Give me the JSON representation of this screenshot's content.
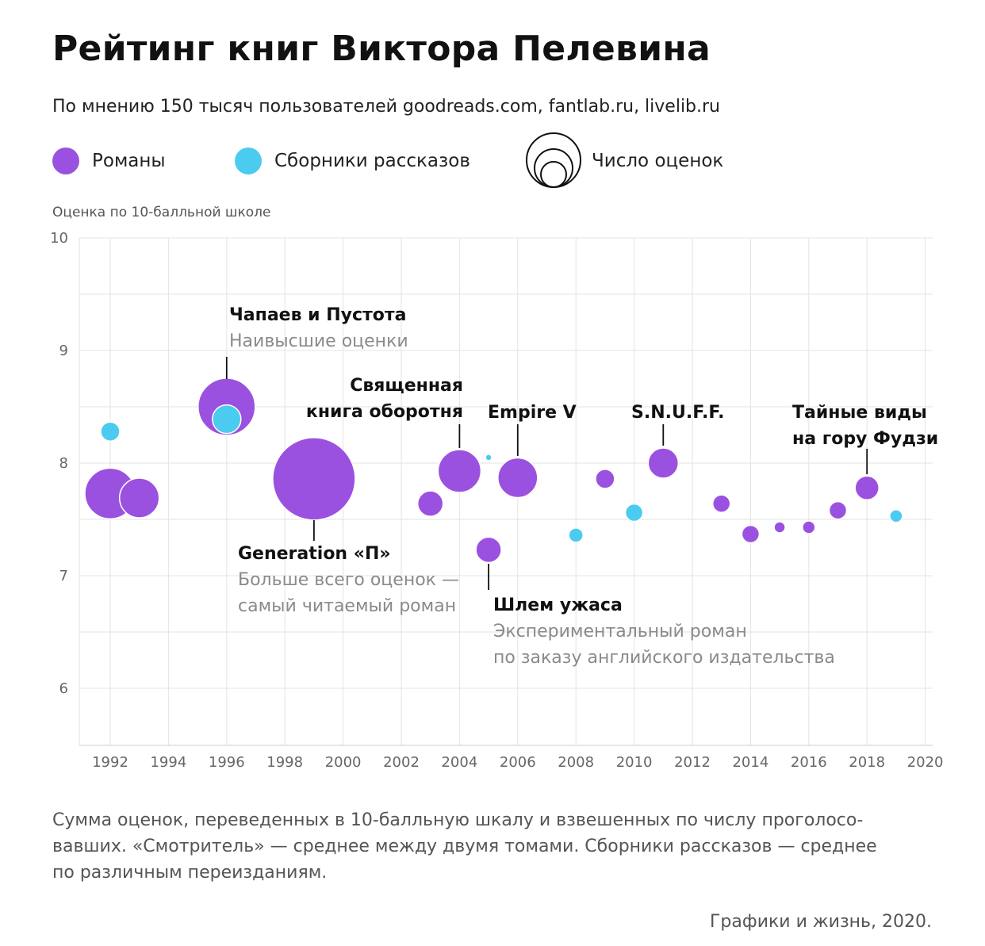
{
  "header": {
    "title": "Рейтинг книг Виктора Пелевина",
    "subtitle": "По мнению 150 тысяч пользователей goodreads.com, fantlab.ru, livelib.ru"
  },
  "legend": {
    "novels": "Романы",
    "stories": "Сборники рассказов",
    "size": "Число оценок"
  },
  "colors": {
    "novel": "#9b51e0",
    "story": "#4ccbf0"
  },
  "footnote": {
    "line1": "Сумма оценок, переведенных в 10-балльную шкалу и взвешенных по числу проголосо-",
    "line2": "вавших. «Смотритель» — среднее между двумя томами. Сборники рассказов — среднее",
    "line3": "по различным переизданиям."
  },
  "credit": "Графики и жизнь, 2020.",
  "chart_data": {
    "type": "scatter",
    "ylabel": "Оценка по 10-балльной школе",
    "xlim": [
      1991,
      2020
    ],
    "ylim": [
      5.5,
      10
    ],
    "x_ticks": [
      1992,
      1994,
      1996,
      1998,
      2000,
      2002,
      2004,
      2006,
      2008,
      2010,
      2012,
      2014,
      2016,
      2018,
      2020
    ],
    "y_ticks": [
      6,
      7,
      8,
      9,
      10
    ],
    "grid": true,
    "points": [
      {
        "year": 1992,
        "rating": 8.28,
        "kind": "story",
        "r": 12
      },
      {
        "year": 1992,
        "rating": 7.73,
        "kind": "novel",
        "r": 32
      },
      {
        "year": 1993,
        "rating": 7.69,
        "kind": "novel",
        "r": 25
      },
      {
        "year": 1996,
        "rating": 8.5,
        "kind": "novel",
        "r": 36
      },
      {
        "year": 1996,
        "rating": 8.39,
        "kind": "story",
        "r": 18
      },
      {
        "year": 1999,
        "rating": 7.86,
        "kind": "novel",
        "r": 52
      },
      {
        "year": 2003,
        "rating": 7.64,
        "kind": "novel",
        "r": 16
      },
      {
        "year": 2004,
        "rating": 7.93,
        "kind": "novel",
        "r": 27
      },
      {
        "year": 2005,
        "rating": 8.05,
        "kind": "story",
        "r": 4
      },
      {
        "year": 2005,
        "rating": 7.23,
        "kind": "novel",
        "r": 16
      },
      {
        "year": 2006,
        "rating": 7.87,
        "kind": "novel",
        "r": 25
      },
      {
        "year": 2008,
        "rating": 7.36,
        "kind": "story",
        "r": 9
      },
      {
        "year": 2009,
        "rating": 7.86,
        "kind": "novel",
        "r": 12
      },
      {
        "year": 2010,
        "rating": 7.56,
        "kind": "story",
        "r": 11
      },
      {
        "year": 2011,
        "rating": 8.0,
        "kind": "novel",
        "r": 19
      },
      {
        "year": 2013,
        "rating": 7.64,
        "kind": "novel",
        "r": 11
      },
      {
        "year": 2014,
        "rating": 7.37,
        "kind": "novel",
        "r": 11
      },
      {
        "year": 2015,
        "rating": 7.43,
        "kind": "novel",
        "r": 7
      },
      {
        "year": 2016,
        "rating": 7.43,
        "kind": "novel",
        "r": 8
      },
      {
        "year": 2017,
        "rating": 7.58,
        "kind": "novel",
        "r": 11
      },
      {
        "year": 2018,
        "rating": 7.78,
        "kind": "novel",
        "r": 15
      },
      {
        "year": 2019,
        "rating": 7.53,
        "kind": "story",
        "r": 8
      }
    ],
    "annotations": [
      {
        "id": "chapaev",
        "year": 1996,
        "rating": 8.5,
        "dir": "up",
        "title": [
          "Чапаев и Пустота"
        ],
        "note": [
          "Наивысшие оценки"
        ]
      },
      {
        "id": "svyashchennaya",
        "year": 2004,
        "rating": 7.93,
        "dir": "up",
        "title": [
          "Священная",
          "книга оборотня"
        ],
        "note": []
      },
      {
        "id": "empire",
        "year": 2006,
        "rating": 7.87,
        "dir": "up",
        "title": [
          "Empire V"
        ],
        "note": []
      },
      {
        "id": "snuff",
        "year": 2011,
        "rating": 8.0,
        "dir": "up",
        "title": [
          "S.N.U.F.F."
        ],
        "note": []
      },
      {
        "id": "fudzi",
        "year": 2018,
        "rating": 7.78,
        "dir": "up",
        "title": [
          "Тайные виды",
          "на гору Фудзи"
        ],
        "note": []
      },
      {
        "id": "generation",
        "year": 1999,
        "rating": 7.86,
        "dir": "down",
        "title": [
          "Generation «П»"
        ],
        "note": [
          "Больше всего оценок —",
          "самый читаемый роман"
        ]
      },
      {
        "id": "shlem",
        "year": 2005,
        "rating": 7.23,
        "dir": "down",
        "title": [
          "Шлем ужаса"
        ],
        "note": [
          "Экспериментальный роман",
          "по заказу английского издательства"
        ]
      }
    ]
  }
}
